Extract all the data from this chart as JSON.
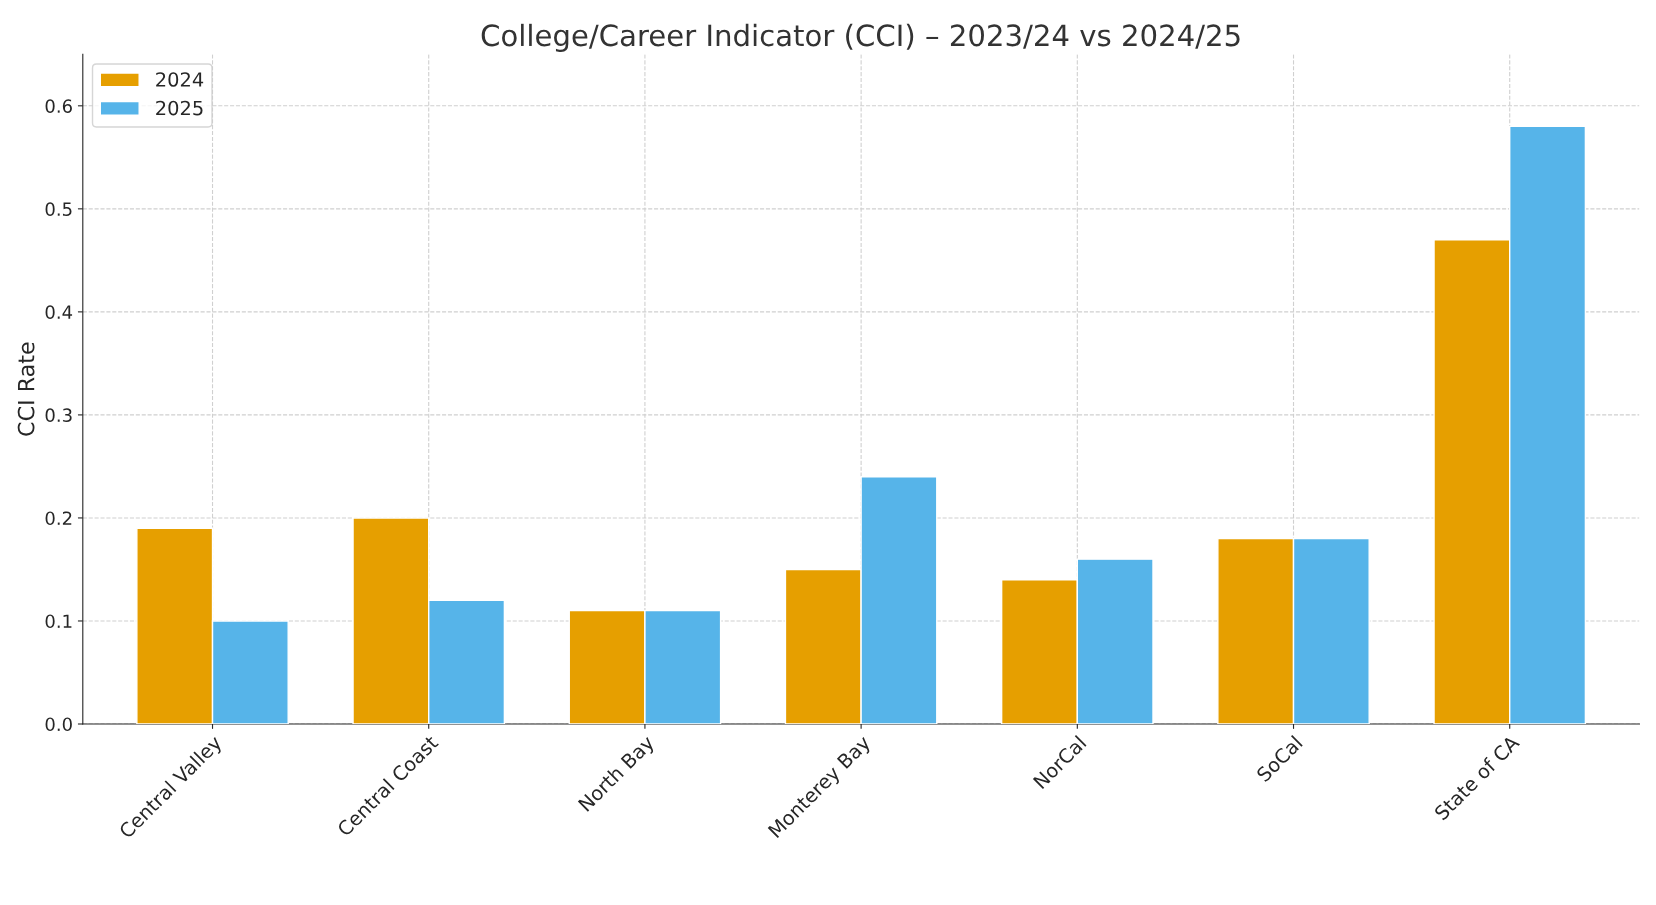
{
  "chart_data": {
    "type": "bar",
    "title": "College/Career Indicator (CCI) – 2023/24 vs 2024/25",
    "ylabel": "CCI Rate",
    "categories": [
      "Central Valley",
      "Central Coast",
      "North Bay",
      "Monterey Bay",
      "NorCal",
      "SoCal",
      "State of CA"
    ],
    "series": [
      {
        "name": "2024",
        "color": "#e69f00",
        "values": [
          0.19,
          0.2,
          0.11,
          0.15,
          0.14,
          0.18,
          0.47
        ]
      },
      {
        "name": "2025",
        "color": "#56b4e9",
        "values": [
          0.1,
          0.12,
          0.11,
          0.24,
          0.16,
          0.18,
          0.58
        ]
      }
    ],
    "ylim": [
      0,
      0.65
    ],
    "yticks": [
      {
        "value": 0,
        "label": "0.0"
      },
      0.1,
      0.2,
      0.3,
      0.4,
      0.5,
      0.6
    ],
    "grid": true,
    "legend": "top left"
  }
}
